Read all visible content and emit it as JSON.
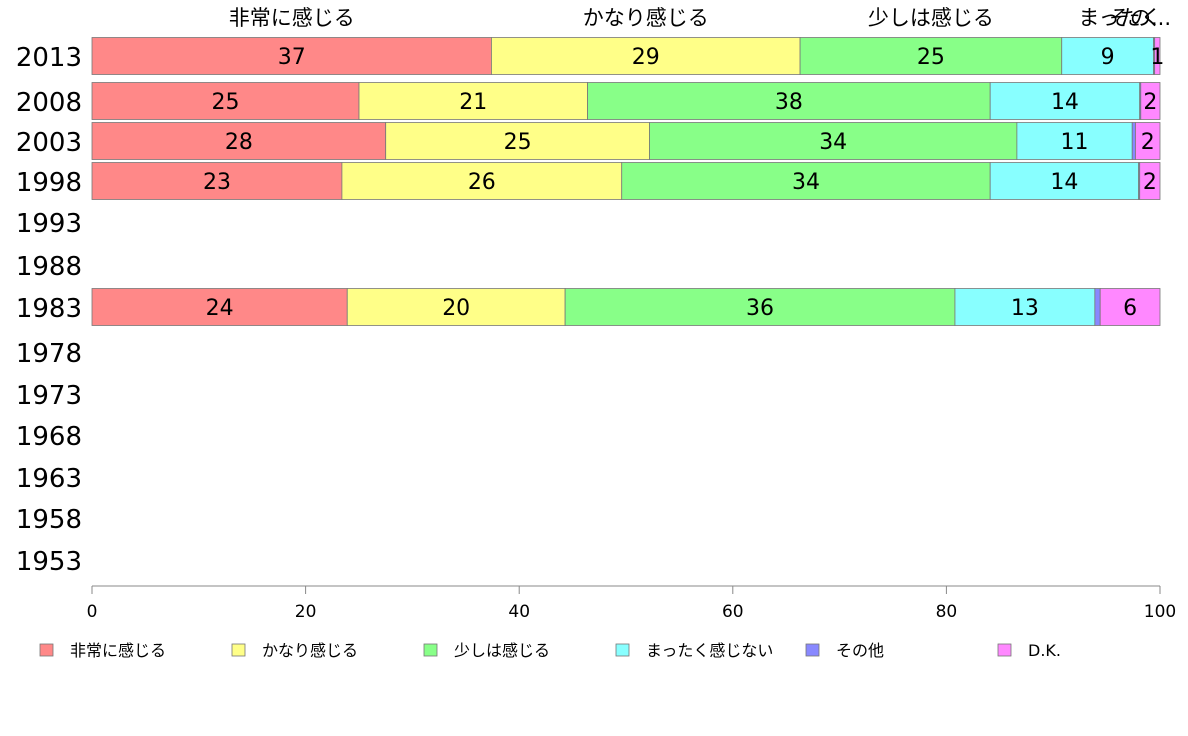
{
  "chart_data": {
    "type": "bar",
    "orientation": "horizontal",
    "stacked": true,
    "categories": [
      "2013",
      "2008",
      "2003",
      "1998",
      "1993",
      "1988",
      "1983",
      "1978",
      "1973",
      "1968",
      "1963",
      "1958",
      "1953"
    ],
    "series": [
      {
        "name": "非常に感じる",
        "color": "#ff8888",
        "values": [
          37.4,
          25.0,
          27.5,
          23.4,
          null,
          null,
          23.9,
          null,
          null,
          null,
          null,
          null,
          null
        ],
        "labels": [
          "37",
          "25",
          "28",
          "23",
          "",
          "",
          "24",
          "",
          "",
          "",
          "",
          "",
          ""
        ]
      },
      {
        "name": "かなり感じる",
        "color": "#ffff88",
        "values": [
          28.9,
          21.4,
          24.7,
          26.2,
          null,
          null,
          20.4,
          null,
          null,
          null,
          null,
          null,
          null
        ],
        "labels": [
          "29",
          "21",
          "25",
          "26",
          "",
          "",
          "20",
          "",
          "",
          "",
          "",
          "",
          ""
        ]
      },
      {
        "name": "少しは感じる",
        "color": "#88ff88",
        "values": [
          24.5,
          37.7,
          34.4,
          34.5,
          null,
          null,
          36.5,
          null,
          null,
          null,
          null,
          null,
          null
        ],
        "labels": [
          "25",
          "38",
          "34",
          "34",
          "",
          "",
          "36",
          "",
          "",
          "",
          "",
          "",
          ""
        ]
      },
      {
        "name": "まったく感じない",
        "color": "#88ffff",
        "values": [
          8.6,
          14.0,
          10.8,
          13.9,
          null,
          null,
          13.1,
          null,
          null,
          null,
          null,
          null,
          null
        ],
        "labels": [
          "9",
          "14",
          "11",
          "14",
          "",
          "",
          "13",
          "",
          "",
          "",
          "",
          "",
          ""
        ]
      },
      {
        "name": "その他",
        "color": "#8888ff",
        "values": [
          0.1,
          0.1,
          0.3,
          0.1,
          null,
          null,
          0.5,
          null,
          null,
          null,
          null,
          null,
          null
        ],
        "labels": [
          "",
          "",
          "",
          "",
          "",
          "",
          "",
          "",
          "",
          "",
          "",
          "",
          ""
        ]
      },
      {
        "name": "D.K.",
        "color": "#ff88ff",
        "values": [
          0.5,
          1.8,
          2.3,
          1.9,
          null,
          null,
          5.6,
          null,
          null,
          null,
          null,
          null,
          null
        ],
        "labels": [
          "1",
          "2",
          "2",
          "2",
          "",
          "",
          "6",
          "",
          "",
          "",
          "",
          "",
          ""
        ]
      }
    ],
    "top_labels": [
      "非常に感じる",
      "かなり感じる",
      "少しは感じる",
      "まったく",
      "その..."
    ],
    "xlim": [
      0,
      100
    ],
    "xticks": [
      "0",
      "20",
      "40",
      "60",
      "80",
      "100"
    ],
    "title": "",
    "xlabel": "",
    "ylabel": "",
    "grid": false,
    "legend_position": "bottom"
  }
}
